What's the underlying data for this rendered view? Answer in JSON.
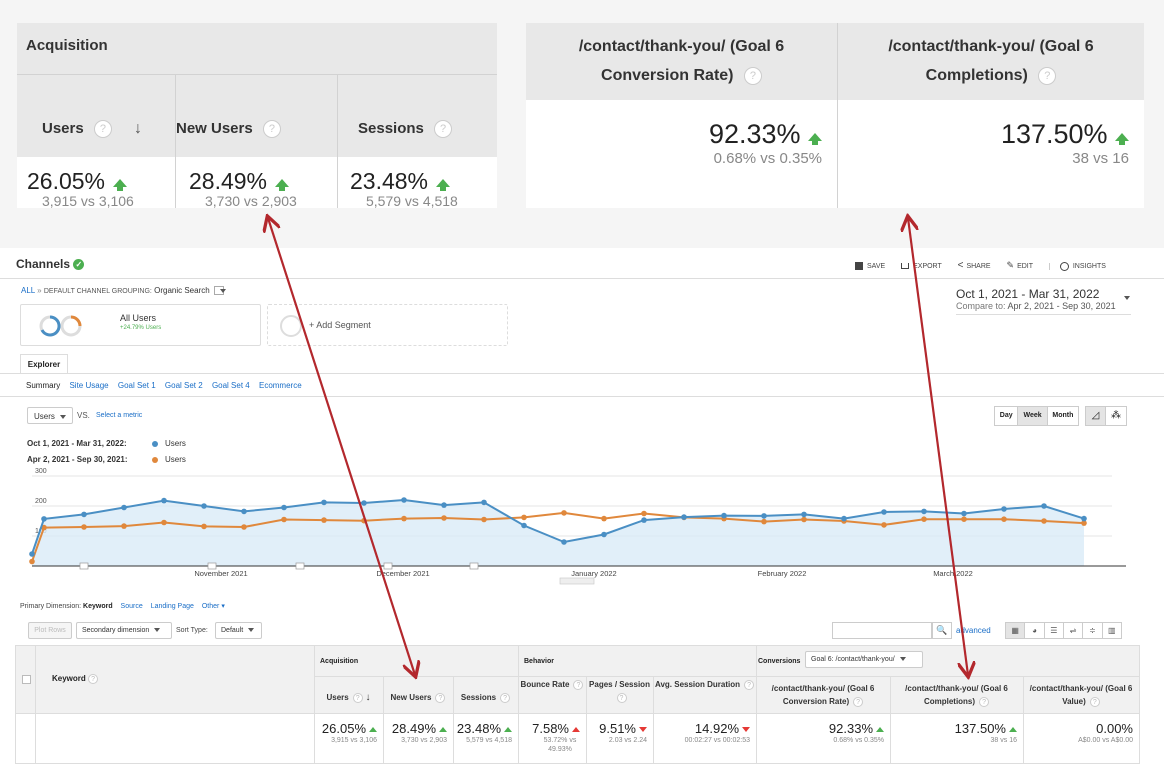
{
  "zoom_left": {
    "section": "Acquisition",
    "columns": [
      {
        "label": "Users",
        "value": "26.05%",
        "compare": "3,915 vs 3,106"
      },
      {
        "label": "New Users",
        "value": "28.49%",
        "compare": "3,730 vs 2,903"
      },
      {
        "label": "Sessions",
        "value": "23.48%",
        "compare": "5,579 vs 4,518"
      }
    ]
  },
  "zoom_right": {
    "columns": [
      {
        "label_line1": "/contact/thank-you/ (Goal 6",
        "label_line2": "Conversion Rate)",
        "value": "92.33%",
        "compare": "0.68% vs 0.35%"
      },
      {
        "label_line1": "/contact/thank-you/ (Goal 6",
        "label_line2": "Completions)",
        "value": "137.50%",
        "compare": "38 vs 16"
      }
    ]
  },
  "header": {
    "title": "Channels",
    "actions": {
      "save": "SAVE",
      "export": "EXPORT",
      "share": "SHARE",
      "edit": "EDIT",
      "insights": "INSIGHTS"
    }
  },
  "breadcrumb": {
    "all": "ALL",
    "sep": "»",
    "grouping": "DEFAULT CHANNEL GROUPING:",
    "value": "Organic Search"
  },
  "date_range": {
    "main": "Oct 1, 2021 - Mar 31, 2022",
    "compare_label": "Compare to:",
    "compare": "Apr 2, 2021 - Sep 30, 2021"
  },
  "segments": {
    "all_users": "All Users",
    "all_users_sub": "+24.79% Users",
    "add": "+ Add Segment"
  },
  "tab": "Explorer",
  "subtabs": [
    "Summary",
    "Site Usage",
    "Goal Set 1",
    "Goal Set 2",
    "Goal Set 4",
    "Ecommerce"
  ],
  "metric": {
    "select": "Users",
    "vs": "VS.",
    "select_metric": "Select a metric"
  },
  "granularity": [
    "Day",
    "Week",
    "Month"
  ],
  "legend": [
    {
      "period": "Oct 1, 2021 - Mar 31, 2022:",
      "series": "Users",
      "color": "#4a8fc4"
    },
    {
      "period": "Apr 2, 2021 - Sep 30, 2021:",
      "series": "Users",
      "color": "#e0883c"
    }
  ],
  "chart_data": {
    "type": "line",
    "ylim": [
      0,
      300
    ],
    "yticks": [
      "300",
      "200",
      "100"
    ],
    "x_labels": [
      "November 2021",
      "December 2021",
      "January 2022",
      "February 2022",
      "March 2022"
    ],
    "series": [
      {
        "name": "Users",
        "color": "#4a8fc4",
        "values": [
          40,
          157,
          172,
          195,
          218,
          200,
          182,
          195,
          212,
          210,
          220,
          203,
          212,
          135,
          80,
          105,
          153,
          163,
          168,
          167,
          172,
          158,
          180,
          182,
          175,
          190,
          200,
          158
        ]
      },
      {
        "name": "Users",
        "color": "#e0883c",
        "values": [
          15,
          128,
          130,
          133,
          145,
          132,
          130,
          155,
          153,
          151,
          158,
          160,
          155,
          162,
          177,
          158,
          175,
          162,
          158,
          148,
          155,
          150,
          137,
          156,
          156,
          156,
          150,
          143
        ]
      }
    ]
  },
  "primary_dimension": {
    "label": "Primary Dimension:",
    "value": "Keyword",
    "options": [
      "Source",
      "Landing Page",
      "Other"
    ]
  },
  "controls": {
    "plot_rows": "Plot Rows",
    "secondary": "Secondary dimension",
    "sort_label": "Sort Type:",
    "sort_value": "Default",
    "advanced": "advanced"
  },
  "table": {
    "keyword_header": "Keyword",
    "acquisition": "Acquisition",
    "behavior": "Behavior",
    "conversions": "Conversions",
    "goal_select": "Goal 6: /contact/thank-you/",
    "columns": [
      {
        "label": "Users",
        "value": "26.05%",
        "compare": "3,915 vs 3,106",
        "dir": "up"
      },
      {
        "label": "New Users",
        "value": "28.49%",
        "compare": "3,730 vs 2,903",
        "dir": "up"
      },
      {
        "label": "Sessions",
        "value": "23.48%",
        "compare": "5,579 vs 4,518",
        "dir": "up"
      },
      {
        "label": "Bounce Rate",
        "value": "7.58%",
        "compare": "53.72% vs 49.93%",
        "dir": "up-red"
      },
      {
        "label": "Pages / Session",
        "value": "9.51%",
        "compare": "2.03 vs 2.24",
        "dir": "down-red"
      },
      {
        "label": "Avg. Session Duration",
        "value": "14.92%",
        "compare": "00:02:27 vs 00:02:53",
        "dir": "down-red"
      },
      {
        "label": "/contact/thank-you/ (Goal 6 Conversion Rate)",
        "value": "92.33%",
        "compare": "0.68% vs 0.35%",
        "dir": "up"
      },
      {
        "label": "/contact/thank-you/ (Goal 6 Completions)",
        "value": "137.50%",
        "compare": "38 vs 16",
        "dir": "up"
      },
      {
        "label": "/contact/thank-you/ (Goal 6 Value)",
        "value": "0.00%",
        "compare": "A$0.00 vs A$0.00",
        "dir": "none"
      }
    ]
  },
  "colors": {
    "arrow": "#b3282d",
    "blue": "#4a8fc4",
    "orange": "#e0883c",
    "green": "#4caf50",
    "red": "#e53935"
  }
}
